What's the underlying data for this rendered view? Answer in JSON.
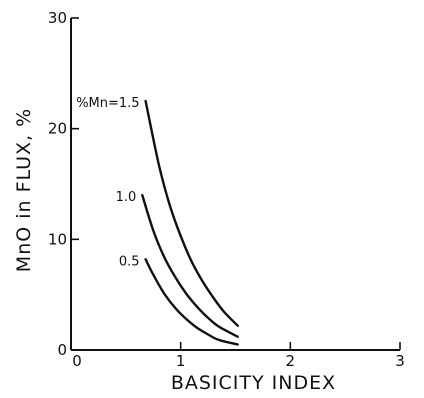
{
  "chart_data": {
    "type": "line",
    "xlabel": "BASICITY INDEX",
    "ylabel": "MnO in FLUX, %",
    "xlim": [
      0,
      3
    ],
    "ylim": [
      0,
      30
    ],
    "xticks": [
      0,
      1,
      2,
      3
    ],
    "yticks": [
      0,
      10,
      20,
      30
    ],
    "x_tick_labels": [
      "0",
      "1",
      "2",
      "3"
    ],
    "y_tick_labels": [
      "0",
      "10",
      "20",
      "30"
    ],
    "grid": false,
    "series": [
      {
        "name": "%Mn=1.5",
        "x": [
          0.68,
          0.8,
          0.9,
          1.0,
          1.1,
          1.2,
          1.3,
          1.4,
          1.52
        ],
        "y": [
          22.5,
          16.8,
          13.1,
          10.3,
          8.0,
          6.2,
          4.7,
          3.4,
          2.2
        ]
      },
      {
        "name": "1.0",
        "x": [
          0.65,
          0.75,
          0.85,
          0.95,
          1.05,
          1.15,
          1.25,
          1.35,
          1.52
        ],
        "y": [
          14.0,
          10.8,
          8.4,
          6.6,
          5.1,
          3.9,
          2.9,
          2.1,
          1.2
        ]
      },
      {
        "name": "0.5",
        "x": [
          0.68,
          0.75,
          0.85,
          0.95,
          1.05,
          1.15,
          1.25,
          1.35,
          1.52
        ],
        "y": [
          8.2,
          6.8,
          5.1,
          3.8,
          2.8,
          2.0,
          1.4,
          0.9,
          0.5
        ]
      }
    ]
  }
}
